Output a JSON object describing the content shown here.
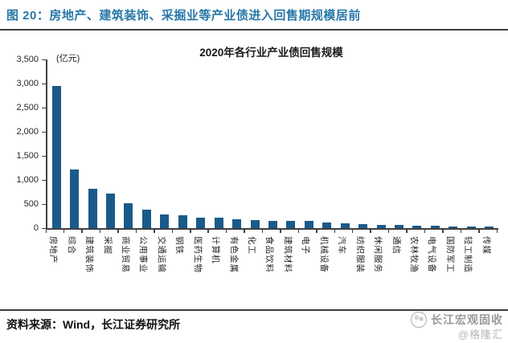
{
  "figure": {
    "title": "图 20：房地产、建筑装饰、采掘业等产业债进入回售期规模居前",
    "source": "资料来源：Wind，长江证券研究所",
    "watermark": {
      "name": "长江宏观固收",
      "handle": "@格隆汇",
      "logo_icon": "changjiang-logo-icon"
    }
  },
  "colors": {
    "title_blue": "#2878a8",
    "bar_blue": "#1a5a8a",
    "rule_dark": "#3d3d3d",
    "axis": "#404040",
    "watermark_gray": "#9b9b9b"
  },
  "chart_data": {
    "type": "bar",
    "title": "2020年各行业产业债回售规模",
    "unit_label": "(亿元)",
    "xlabel": "",
    "ylabel": "",
    "ylim": [
      0,
      3500
    ],
    "ytick_step": 500,
    "ytick_labels": [
      "3,500",
      "3,000",
      "2,500",
      "2,000",
      "1,500",
      "1,000",
      "500",
      "0"
    ],
    "grid": false,
    "legend": "none",
    "bar_color": "#1a5a8a",
    "categories": [
      "房地产",
      "综合",
      "建筑装饰",
      "采掘",
      "商业贸易",
      "公用事业",
      "交通运输",
      "钢铁",
      "医药生物",
      "计算机",
      "有色金属",
      "化工",
      "食品饮料",
      "建筑材料",
      "电子",
      "机械设备",
      "汽车",
      "纺织服装",
      "休闲服务",
      "通信",
      "农林牧渔",
      "电气设备",
      "国防军工",
      "轻工制造",
      "传媒"
    ],
    "values": [
      2950,
      1220,
      820,
      720,
      510,
      390,
      280,
      260,
      215,
      210,
      185,
      165,
      150,
      148,
      145,
      115,
      100,
      80,
      68,
      62,
      52,
      46,
      38,
      32,
      25
    ]
  }
}
